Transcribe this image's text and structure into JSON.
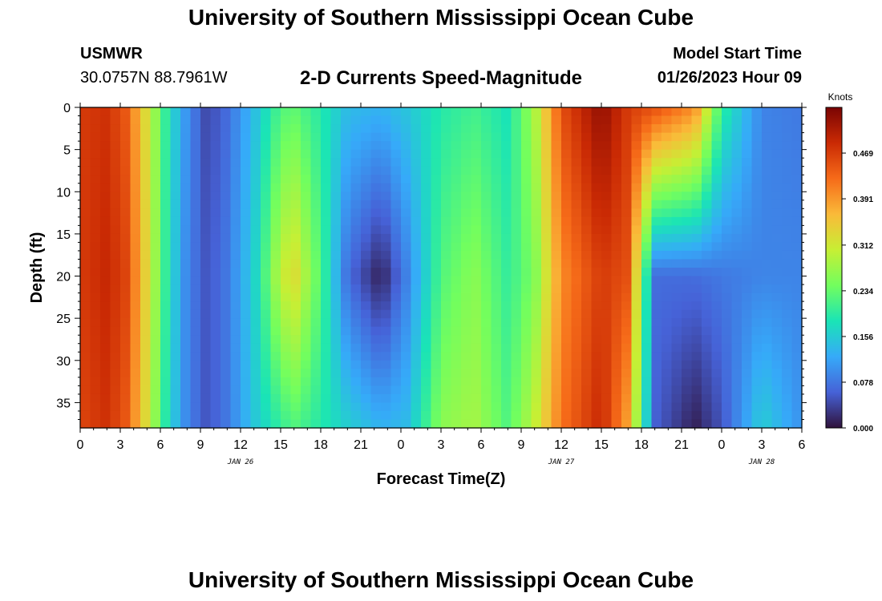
{
  "header": {
    "title": "University of Southern Mississippi Ocean Cube",
    "station": "USMWR",
    "coords": "30.0757N  88.7961W",
    "subtitle": "2-D Currents Speed-Magnitude",
    "model_start_label": "Model Start Time",
    "model_start_value": "01/26/2023 Hour 09"
  },
  "footer": {
    "title": "University of Southern Mississippi Ocean Cube"
  },
  "chart_data": {
    "type": "heatmap",
    "xlabel": "Forecast Time(Z)",
    "ylabel": "Depth (ft)",
    "x_tick_labels": [
      "0",
      "3",
      "6",
      "9",
      "12",
      "15",
      "18",
      "21",
      "0",
      "3",
      "6",
      "9",
      "12",
      "15",
      "18",
      "21",
      "0",
      "3",
      "6"
    ],
    "x_range_hours": [
      0,
      54
    ],
    "date_labels": [
      {
        "label": "JAN 26",
        "hour": 12
      },
      {
        "label": "JAN 27",
        "hour": 36
      },
      {
        "label": "JAN 28",
        "hour": 51
      }
    ],
    "y_tick_labels": [
      "0",
      "5",
      "10",
      "15",
      "20",
      "25",
      "30",
      "35"
    ],
    "y_range_ft": [
      0,
      38
    ],
    "colorbar": {
      "title": "Knots",
      "range": [
        0,
        0.547
      ],
      "tick_values": [
        0.0,
        0.078,
        0.156,
        0.234,
        0.312,
        0.391,
        0.469
      ],
      "tick_labels": [
        "0.000",
        "0.078",
        "0.156",
        "0.234",
        "0.312",
        "0.391",
        "0.469"
      ]
    },
    "speed_profile_knots": [
      {
        "hour": 0,
        "surface": 0.47,
        "d20": 0.47,
        "bottom": 0.46
      },
      {
        "hour": 2,
        "surface": 0.48,
        "d20": 0.49,
        "bottom": 0.48
      },
      {
        "hour": 3.5,
        "surface": 0.44,
        "d20": 0.46,
        "bottom": 0.44
      },
      {
        "hour": 5,
        "surface": 0.32,
        "d20": 0.33,
        "bottom": 0.32
      },
      {
        "hour": 6.5,
        "surface": 0.19,
        "d20": 0.19,
        "bottom": 0.18
      },
      {
        "hour": 8,
        "surface": 0.1,
        "d20": 0.09,
        "bottom": 0.09
      },
      {
        "hour": 9.5,
        "surface": 0.04,
        "d20": 0.05,
        "bottom": 0.05
      },
      {
        "hour": 11,
        "surface": 0.07,
        "d20": 0.08,
        "bottom": 0.08
      },
      {
        "hour": 13,
        "surface": 0.14,
        "d20": 0.16,
        "bottom": 0.15
      },
      {
        "hour": 15,
        "surface": 0.22,
        "d20": 0.3,
        "bottom": 0.2
      },
      {
        "hour": 16,
        "surface": 0.23,
        "d20": 0.33,
        "bottom": 0.22
      },
      {
        "hour": 18,
        "surface": 0.19,
        "d20": 0.22,
        "bottom": 0.19
      },
      {
        "hour": 20,
        "surface": 0.14,
        "d20": 0.07,
        "bottom": 0.16
      },
      {
        "hour": 22.5,
        "surface": 0.13,
        "d20": 0.01,
        "bottom": 0.13
      },
      {
        "hour": 24.5,
        "surface": 0.15,
        "d20": 0.09,
        "bottom": 0.14
      },
      {
        "hour": 27,
        "surface": 0.19,
        "d20": 0.22,
        "bottom": 0.26
      },
      {
        "hour": 29.5,
        "surface": 0.21,
        "d20": 0.26,
        "bottom": 0.28
      },
      {
        "hour": 32,
        "surface": 0.18,
        "d20": 0.2,
        "bottom": 0.22
      },
      {
        "hour": 34,
        "surface": 0.28,
        "d20": 0.25,
        "bottom": 0.3
      },
      {
        "hour": 36,
        "surface": 0.45,
        "d20": 0.4,
        "bottom": 0.42
      },
      {
        "hour": 39,
        "surface": 0.53,
        "d20": 0.47,
        "bottom": 0.49
      },
      {
        "hour": 41,
        "surface": 0.47,
        "d20": 0.45,
        "bottom": 0.38
      },
      {
        "hour": 43,
        "surface": 0.45,
        "d20": 0.07,
        "bottom": 0.06
      },
      {
        "hour": 46,
        "surface": 0.4,
        "d20": 0.07,
        "bottom": 0.01
      },
      {
        "hour": 48,
        "surface": 0.2,
        "d20": 0.08,
        "bottom": 0.05
      },
      {
        "hour": 51,
        "surface": 0.09,
        "d20": 0.09,
        "bottom": 0.16
      },
      {
        "hour": 54,
        "surface": 0.08,
        "d20": 0.09,
        "bottom": 0.1
      }
    ],
    "colormap": [
      "#30123b",
      "#4662d7",
      "#36aaf9",
      "#1ae4b6",
      "#72fe5e",
      "#c7ef34",
      "#faba39",
      "#f66b19",
      "#ca2a04",
      "#7a0403"
    ]
  }
}
